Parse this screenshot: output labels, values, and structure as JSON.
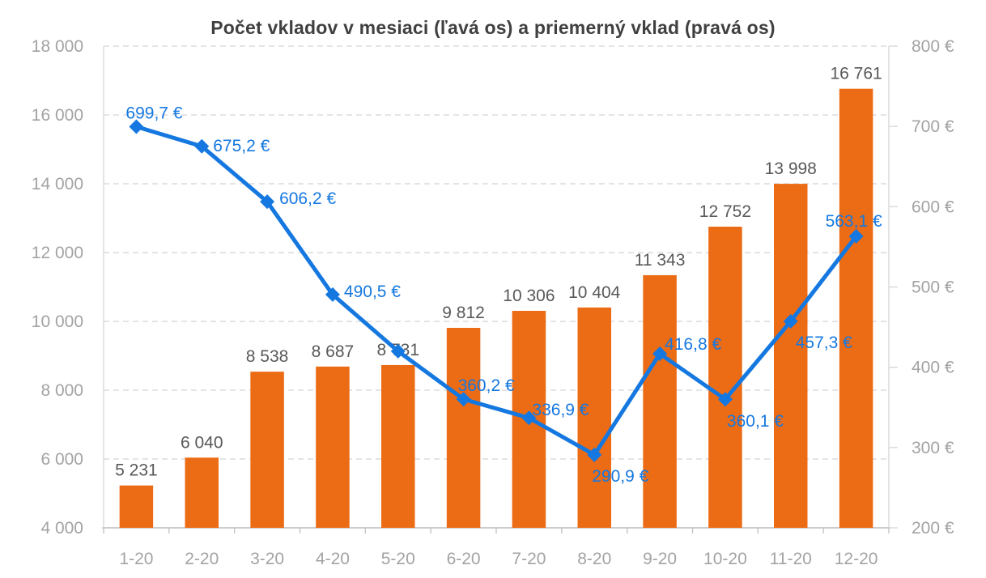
{
  "page": {
    "background": "#FFFFFF"
  },
  "chart_data": {
    "type": "combo",
    "title": "Počet vkladov v mesiaci (ľavá os) a priemerný vklad (pravá os)",
    "categories": [
      "1-20",
      "2-20",
      "3-20",
      "4-20",
      "5-20",
      "6-20",
      "7-20",
      "8-20",
      "9-20",
      "10-20",
      "11-20",
      "12-20"
    ],
    "series": [
      {
        "name": "Počet vkladov v mesiaci",
        "type": "bar",
        "axis": "left",
        "color": "#EC6B15",
        "values": [
          5231,
          6040,
          8538,
          8687,
          8731,
          9812,
          10306,
          10404,
          11343,
          12752,
          13998,
          16761
        ],
        "labels": [
          "5 231",
          "6 040",
          "8 538",
          "8 687",
          "8 731",
          "9 812",
          "10 306",
          "10 404",
          "11 343",
          "12 752",
          "13 998",
          "16 761"
        ]
      },
      {
        "name": "Priemerný vklad",
        "type": "line",
        "axis": "right",
        "color": "#1578E0",
        "marker": "diamond",
        "values": [
          699.7,
          675.2,
          606.2,
          490.5,
          420,
          360.2,
          336.9,
          290.9,
          416.8,
          360.1,
          457.3,
          563.1
        ],
        "labels": [
          "699,7 €",
          "675,2 €",
          "606,2 €",
          "490,5 €",
          "",
          "360,2 €",
          "336,9 €",
          "290,9 €",
          "416,8 €",
          "360,1 €",
          "457,3 €",
          "563,1 €"
        ]
      }
    ],
    "left_axis": {
      "min": 4000,
      "max": 18000,
      "step": 2000,
      "tick_labels": [
        "4 000",
        "6 000",
        "8 000",
        "10 000",
        "12 000",
        "14 000",
        "16 000",
        "18 000"
      ]
    },
    "right_axis": {
      "min": 200,
      "max": 800,
      "step": 100,
      "tick_labels": [
        "200 €",
        "300 €",
        "400 €",
        "500 €",
        "600 €",
        "700 €",
        "800 €"
      ]
    },
    "grid": {
      "horizontal": "dashed",
      "vertical": "off"
    },
    "legend": "none",
    "layout_hints": {
      "line_label_offsets": [
        [
          -13,
          -10
        ],
        [
          14,
          6
        ],
        [
          15,
          3
        ],
        [
          14,
          3
        ],
        null,
        [
          -7,
          -10
        ],
        [
          4,
          -3
        ],
        [
          -3,
          33
        ],
        [
          6,
          -5
        ],
        [
          2,
          34
        ],
        [
          6,
          33
        ],
        [
          -38,
          -12
        ]
      ],
      "bar_label_gap": 12
    },
    "colors": {
      "title_text": "#404040",
      "axis_text": "#A3A3A3",
      "bar_label_text": "#595959",
      "line_label_text": "#1578E0",
      "gridline": "#DCDCDC",
      "axis_line": "#C4C4C4",
      "plot_border": "#D9D9D9"
    }
  }
}
